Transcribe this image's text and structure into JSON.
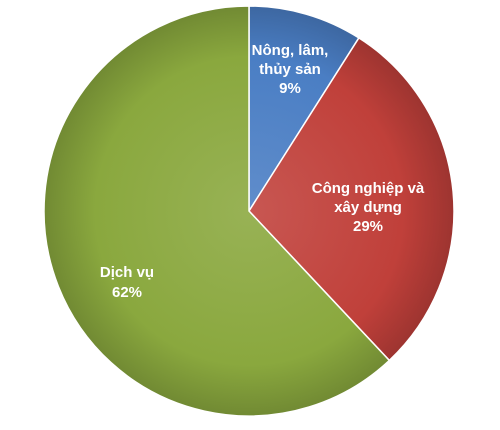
{
  "chart_data": {
    "type": "pie",
    "title": "",
    "slices": [
      {
        "label_lines": [
          "Nông, lâm,",
          "thủy sản"
        ],
        "percent_label": "9%",
        "value": 9,
        "color": "#4a7ec4"
      },
      {
        "label_lines": [
          "Công nghiệp và",
          "xây dựng"
        ],
        "percent_label": "29%",
        "value": 29,
        "color": "#c0403a"
      },
      {
        "label_lines": [
          "Dịch vụ"
        ],
        "percent_label": "62%",
        "value": 62,
        "color": "#8aa83e"
      }
    ],
    "legend": "none"
  }
}
